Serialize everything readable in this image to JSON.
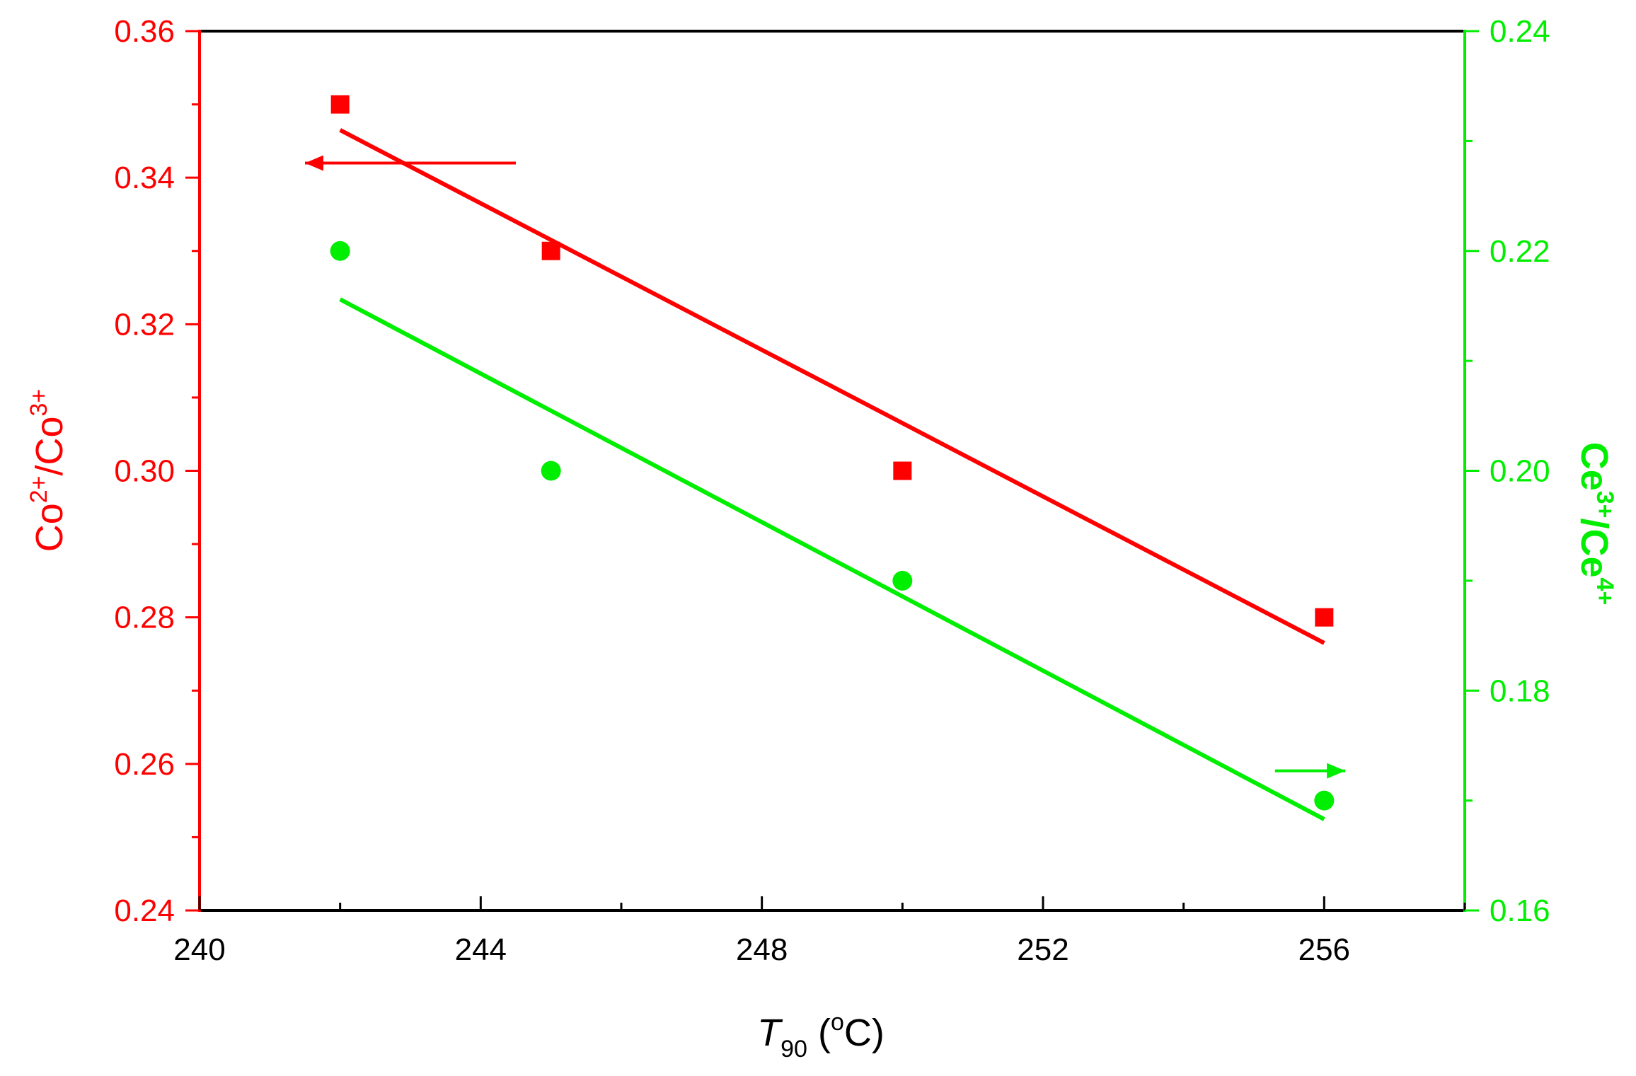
{
  "chart_data": {
    "type": "scatter",
    "x_axis": {
      "label": "T",
      "label_subscript": "90",
      "label_unit_prefix": " (",
      "label_unit_superscript": "o",
      "label_unit_suffix": "C)",
      "range": [
        240,
        258
      ],
      "ticks": [
        "240",
        "244",
        "248",
        "252",
        "256"
      ],
      "minor_step": 2
    },
    "y_left": {
      "color": "#ff0000",
      "label_base": "Co",
      "label_sup1": "2+",
      "label_mid": "/Co",
      "label_sup2": "3+",
      "range": [
        0.24,
        0.36
      ],
      "ticks": [
        "0.24",
        "0.26",
        "0.28",
        "0.30",
        "0.32",
        "0.34",
        "0.36"
      ],
      "minor_step": 0.01
    },
    "y_right": {
      "color": "#00ee00",
      "label_base": "Ce",
      "label_sup1": "3+",
      "label_mid": "/Ce",
      "label_sup2": "4+",
      "range": [
        0.16,
        0.24
      ],
      "ticks": [
        "0.16",
        "0.18",
        "0.20",
        "0.22",
        "0.24"
      ],
      "minor_step": 0.01
    },
    "series": [
      {
        "axis": "left",
        "marker": "square",
        "color": "#ff0000",
        "x": [
          242,
          245,
          250,
          256
        ],
        "y": [
          0.35,
          0.33,
          0.3,
          0.28
        ],
        "fit": {
          "x": [
            242,
            256
          ],
          "y": [
            0.3465,
            0.2765
          ]
        },
        "arrow": {
          "direction": "left",
          "x_from": 244.5,
          "x_to": 241.5,
          "y": 0.342
        }
      },
      {
        "axis": "right",
        "marker": "circle",
        "color": "#00ee00",
        "x": [
          242,
          245,
          250,
          256
        ],
        "y": [
          0.22,
          0.2,
          0.19,
          0.17
        ],
        "fit": {
          "x": [
            242,
            256
          ],
          "y": [
            0.2156,
            0.1683
          ]
        },
        "arrow": {
          "direction": "right",
          "x_from": 255.3,
          "x_to": 256.3,
          "y": 0.1727
        }
      }
    ],
    "grid": false,
    "legend": "none"
  }
}
